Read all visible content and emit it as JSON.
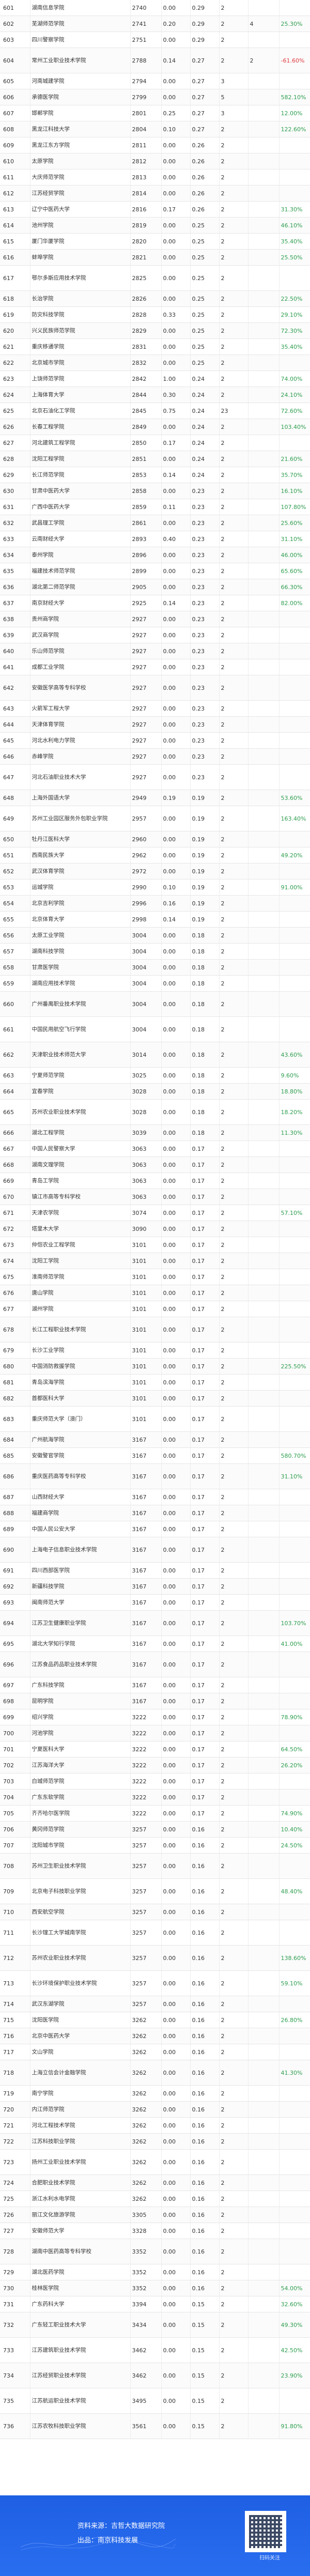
{
  "rows": [
    [
      "601",
      "湖南信息学院",
      "2740",
      "0.00",
      "0.29",
      "2",
      "",
      ""
    ],
    [
      "602",
      "芜湖师范学院",
      "2741",
      "0.20",
      "0.29",
      "2",
      "4",
      "25.30%"
    ],
    [
      "603",
      "四川警察学院",
      "2751",
      "0.00",
      "0.29",
      "2",
      "",
      ""
    ],
    [
      "604",
      "常州工业职业技术学院",
      "2788",
      "0.14",
      "0.27",
      "2",
      "2",
      "-61.60%"
    ],
    [
      "605",
      "河南城建学院",
      "2794",
      "0.00",
      "0.27",
      "3",
      "",
      ""
    ],
    [
      "606",
      "承德医学院",
      "2799",
      "0.00",
      "0.27",
      "5",
      "",
      "582.10%"
    ],
    [
      "607",
      "邯郸学院",
      "2801",
      "0.25",
      "0.27",
      "3",
      "",
      "12.00%"
    ],
    [
      "608",
      "黑龙江科技大学",
      "2804",
      "0.10",
      "0.27",
      "2",
      "",
      "122.60%"
    ],
    [
      "609",
      "黑龙江东方学院",
      "2811",
      "0.00",
      "0.26",
      "2",
      "",
      ""
    ],
    [
      "610",
      "太原学院",
      "2812",
      "0.00",
      "0.26",
      "2",
      "",
      ""
    ],
    [
      "611",
      "大庆师范学院",
      "2813",
      "0.00",
      "0.26",
      "2",
      "",
      ""
    ],
    [
      "612",
      "江苏经贸学院",
      "2814",
      "0.00",
      "0.26",
      "2",
      "",
      ""
    ],
    [
      "613",
      "辽宁中医药大学",
      "2816",
      "0.17",
      "0.26",
      "2",
      "",
      "31.30%"
    ],
    [
      "614",
      "池州学院",
      "2819",
      "0.00",
      "0.25",
      "2",
      "",
      "46.10%"
    ],
    [
      "615",
      "厦门华厦学院",
      "2820",
      "0.00",
      "0.25",
      "2",
      "",
      "35.40%"
    ],
    [
      "616",
      "蚌埠学院",
      "2821",
      "0.00",
      "0.25",
      "2",
      "",
      "25.50%"
    ],
    [
      "617",
      "鄂尔多斯应用技术学院",
      "2825",
      "0.00",
      "0.25",
      "2",
      "",
      ""
    ],
    [
      "618",
      "长治学院",
      "2826",
      "0.00",
      "0.25",
      "2",
      "",
      "22.50%"
    ],
    [
      "619",
      "防灾科技学院",
      "2828",
      "0.33",
      "0.25",
      "2",
      "",
      "29.10%"
    ],
    [
      "620",
      "兴义民族师范学院",
      "2829",
      "0.00",
      "0.25",
      "2",
      "",
      "72.30%"
    ],
    [
      "621",
      "重庆移通学院",
      "2831",
      "0.00",
      "0.25",
      "2",
      "",
      "35.40%"
    ],
    [
      "622",
      "北京城市学院",
      "2832",
      "0.00",
      "0.25",
      "2",
      "",
      ""
    ],
    [
      "623",
      "上饶师范学院",
      "2842",
      "1.00",
      "0.24",
      "2",
      "",
      "74.00%"
    ],
    [
      "624",
      "上海体育大学",
      "2844",
      "0.30",
      "0.24",
      "2",
      "",
      "24.10%"
    ],
    [
      "625",
      "北京石油化工学院",
      "2845",
      "0.75",
      "0.24",
      "23",
      "",
      "72.60%"
    ],
    [
      "626",
      "长春工程学院",
      "2849",
      "0.00",
      "0.24",
      "2",
      "",
      "103.40%"
    ],
    [
      "627",
      "河北建筑工程学院",
      "2850",
      "0.17",
      "0.24",
      "2",
      "",
      ""
    ],
    [
      "628",
      "沈阳工程学院",
      "2851",
      "0.00",
      "0.24",
      "2",
      "",
      "21.60%"
    ],
    [
      "629",
      "长江师范学院",
      "2853",
      "0.14",
      "0.24",
      "2",
      "",
      "35.70%"
    ],
    [
      "630",
      "甘肃中医药大学",
      "2858",
      "0.00",
      "0.23",
      "2",
      "",
      "16.10%"
    ],
    [
      "631",
      "广西中医药大学",
      "2859",
      "0.11",
      "0.23",
      "2",
      "",
      "107.80%"
    ],
    [
      "632",
      "武昌理工学院",
      "2861",
      "0.00",
      "0.23",
      "2",
      "",
      "25.60%"
    ],
    [
      "633",
      "云南财经大学",
      "2893",
      "0.40",
      "0.23",
      "2",
      "",
      "31.10%"
    ],
    [
      "634",
      "泰州学院",
      "2896",
      "0.00",
      "0.23",
      "2",
      "",
      "46.00%"
    ],
    [
      "635",
      "福建技术师范学院",
      "2899",
      "0.00",
      "0.23",
      "2",
      "",
      "65.60%"
    ],
    [
      "636",
      "湖北第二师范学院",
      "2905",
      "0.00",
      "0.23",
      "2",
      "",
      "66.30%"
    ],
    [
      "637",
      "南京财经大学",
      "2925",
      "0.14",
      "0.23",
      "2",
      "",
      "82.00%"
    ],
    [
      "638",
      "贵州商学院",
      "2927",
      "0.00",
      "0.23",
      "2",
      "",
      ""
    ],
    [
      "639",
      "武汉商学院",
      "2927",
      "0.00",
      "0.23",
      "2",
      "",
      ""
    ],
    [
      "640",
      "乐山师范学院",
      "2927",
      "0.00",
      "0.23",
      "2",
      "",
      ""
    ],
    [
      "641",
      "成都工业学院",
      "2927",
      "0.00",
      "0.23",
      "2",
      "",
      ""
    ],
    [
      "642",
      "安徽医学高等专科学校",
      "2927",
      "0.00",
      "0.23",
      "2",
      "",
      ""
    ],
    [
      "643",
      "火箭军工程大学",
      "2927",
      "0.00",
      "0.23",
      "2",
      "",
      ""
    ],
    [
      "644",
      "天津体育学院",
      "2927",
      "0.00",
      "0.23",
      "2",
      "",
      ""
    ],
    [
      "645",
      "河北水利电力学院",
      "2927",
      "0.00",
      "0.23",
      "2",
      "",
      ""
    ],
    [
      "646",
      "赤峰学院",
      "2927",
      "0.00",
      "0.23",
      "2",
      "",
      ""
    ],
    [
      "647",
      "河北石油职业技术大学",
      "2927",
      "0.00",
      "0.23",
      "2",
      "",
      ""
    ],
    [
      "648",
      "上海外国语大学",
      "2949",
      "0.19",
      "0.19",
      "2",
      "",
      "53.60%"
    ],
    [
      "649",
      "苏州工业园区服务外包职业学院",
      "2957",
      "0.00",
      "0.19",
      "2",
      "",
      "163.40%"
    ],
    [
      "650",
      "牡丹江医科大学",
      "2960",
      "0.00",
      "0.19",
      "2",
      "",
      ""
    ],
    [
      "651",
      "西南民族大学",
      "2962",
      "0.00",
      "0.19",
      "2",
      "",
      "49.20%"
    ],
    [
      "652",
      "武汉体育学院",
      "2972",
      "0.00",
      "0.19",
      "2",
      "",
      ""
    ],
    [
      "653",
      "运城学院",
      "2990",
      "0.10",
      "0.19",
      "2",
      "",
      "91.00%"
    ],
    [
      "654",
      "北京吉利学院",
      "2996",
      "0.16",
      "0.19",
      "2",
      "",
      ""
    ],
    [
      "655",
      "北京体育大学",
      "2998",
      "0.14",
      "0.19",
      "2",
      "",
      ""
    ],
    [
      "656",
      "太原工业学院",
      "3004",
      "0.00",
      "0.18",
      "2",
      "",
      ""
    ],
    [
      "657",
      "湖南科技学院",
      "3004",
      "0.00",
      "0.18",
      "2",
      "",
      ""
    ],
    [
      "658",
      "甘肃医学院",
      "3004",
      "0.00",
      "0.18",
      "2",
      "",
      ""
    ],
    [
      "659",
      "湖南应用技术学院",
      "3004",
      "0.00",
      "0.18",
      "2",
      "",
      ""
    ],
    [
      "660",
      "广州番禺职业技术学院",
      "3004",
      "0.00",
      "0.18",
      "2",
      "",
      ""
    ],
    [
      "661",
      "中国民用航空飞行学院",
      "3004",
      "0.00",
      "0.18",
      "2",
      "",
      ""
    ],
    [
      "662",
      "天津职业技术师范大学",
      "3014",
      "0.00",
      "0.18",
      "2",
      "",
      "43.60%"
    ],
    [
      "663",
      "宁夏师范学院",
      "3025",
      "0.00",
      "0.18",
      "2",
      "",
      "9.60%"
    ],
    [
      "664",
      "宜春学院",
      "3028",
      "0.00",
      "0.18",
      "2",
      "",
      "18.80%"
    ],
    [
      "665",
      "苏州农业职业技术学院",
      "3028",
      "0.00",
      "0.18",
      "2",
      "",
      "18.20%"
    ],
    [
      "666",
      "湖北工程学院",
      "3039",
      "0.00",
      "0.18",
      "2",
      "",
      "11.30%"
    ],
    [
      "667",
      "中国人民警察大学",
      "3063",
      "0.00",
      "0.17",
      "2",
      "",
      ""
    ],
    [
      "668",
      "湖南文理学院",
      "3063",
      "0.00",
      "0.17",
      "2",
      "",
      ""
    ],
    [
      "669",
      "青岛工学院",
      "3063",
      "0.00",
      "0.17",
      "2",
      "",
      ""
    ],
    [
      "670",
      "镇江市高等专科学校",
      "3063",
      "0.00",
      "0.17",
      "2",
      "",
      ""
    ],
    [
      "671",
      "天津农学院",
      "3074",
      "0.00",
      "0.17",
      "2",
      "",
      "57.10%"
    ],
    [
      "672",
      "塔里木大学",
      "3090",
      "0.00",
      "0.17",
      "2",
      "",
      ""
    ],
    [
      "673",
      "仲恺农业工程学院",
      "3101",
      "0.00",
      "0.17",
      "2",
      "",
      ""
    ],
    [
      "674",
      "沈阳工学院",
      "3101",
      "0.00",
      "0.17",
      "2",
      "",
      ""
    ],
    [
      "675",
      "淮南师范学院",
      "3101",
      "0.00",
      "0.17",
      "2",
      "",
      ""
    ],
    [
      "676",
      "唐山学院",
      "3101",
      "0.00",
      "0.17",
      "2",
      "",
      ""
    ],
    [
      "677",
      "湖州学院",
      "3101",
      "0.00",
      "0.17",
      "2",
      "",
      ""
    ],
    [
      "678",
      "长江工程职业技术学院",
      "3101",
      "0.00",
      "0.17",
      "2",
      "",
      ""
    ],
    [
      "679",
      "长沙工业学院",
      "3101",
      "0.00",
      "0.17",
      "2",
      "",
      ""
    ],
    [
      "680",
      "中国消防救援学院",
      "3101",
      "0.00",
      "0.17",
      "2",
      "",
      "225.50%"
    ],
    [
      "681",
      "青岛滨海学院",
      "3101",
      "0.00",
      "0.17",
      "2",
      "",
      ""
    ],
    [
      "682",
      "首都医科大学",
      "3101",
      "0.00",
      "0.17",
      "2",
      "",
      ""
    ],
    [
      "683",
      "重庆师范大学（澳门）",
      "3101",
      "0.00",
      "0.17",
      "2",
      "",
      ""
    ],
    [
      "684",
      "广州航海学院",
      "3167",
      "0.00",
      "0.17",
      "2",
      "",
      ""
    ],
    [
      "685",
      "安徽警官学院",
      "3167",
      "0.00",
      "0.17",
      "2",
      "",
      "580.70%"
    ],
    [
      "686",
      "重庆医药高等专科学校",
      "3167",
      "0.00",
      "0.17",
      "2",
      "",
      "31.10%"
    ],
    [
      "687",
      "山西财经大学",
      "3167",
      "0.00",
      "0.17",
      "2",
      "",
      ""
    ],
    [
      "688",
      "福建商学院",
      "3167",
      "0.00",
      "0.17",
      "2",
      "",
      ""
    ],
    [
      "689",
      "中国人民公安大学",
      "3167",
      "0.00",
      "0.17",
      "2",
      "",
      ""
    ],
    [
      "690",
      "上海电子信息职业技术学院",
      "3167",
      "0.00",
      "0.17",
      "2",
      "",
      ""
    ],
    [
      "691",
      "四川西部医学院",
      "3167",
      "0.00",
      "0.17",
      "2",
      "",
      ""
    ],
    [
      "692",
      "新疆科技学院",
      "3167",
      "0.00",
      "0.17",
      "2",
      "",
      ""
    ],
    [
      "693",
      "闽南师范大学",
      "3167",
      "0.00",
      "0.17",
      "2",
      "",
      ""
    ],
    [
      "694",
      "江苏卫生健康职业学院",
      "3167",
      "0.00",
      "0.17",
      "2",
      "",
      "103.70%"
    ],
    [
      "695",
      "湖北大学知行学院",
      "3167",
      "0.00",
      "0.17",
      "2",
      "",
      "41.00%"
    ],
    [
      "696",
      "江苏食品药品职业技术学院",
      "3167",
      "0.00",
      "0.17",
      "2",
      "",
      ""
    ],
    [
      "697",
      "广东科技学院",
      "3167",
      "0.00",
      "0.17",
      "2",
      "",
      ""
    ],
    [
      "698",
      "昆明学院",
      "3167",
      "0.00",
      "0.17",
      "2",
      "",
      ""
    ],
    [
      "699",
      "绍兴学院",
      "3222",
      "0.00",
      "0.17",
      "2",
      "",
      "78.90%"
    ],
    [
      "700",
      "河池学院",
      "3222",
      "0.00",
      "0.17",
      "2",
      "",
      ""
    ],
    [
      "701",
      "宁夏医科大学",
      "3222",
      "0.00",
      "0.17",
      "2",
      "",
      "64.50%"
    ],
    [
      "702",
      "江苏海洋大学",
      "3222",
      "0.00",
      "0.17",
      "2",
      "",
      "26.20%"
    ],
    [
      "703",
      "白城师范学院",
      "3222",
      "0.00",
      "0.17",
      "2",
      "",
      ""
    ],
    [
      "704",
      "广东东软学院",
      "3222",
      "0.00",
      "0.17",
      "2",
      "",
      ""
    ],
    [
      "705",
      "齐齐哈尔医学院",
      "3222",
      "0.00",
      "0.17",
      "2",
      "",
      "74.90%"
    ],
    [
      "706",
      "黄冈师范学院",
      "3257",
      "0.00",
      "0.16",
      "2",
      "",
      "10.40%"
    ],
    [
      "707",
      "沈阳城市学院",
      "3257",
      "0.00",
      "0.16",
      "2",
      "",
      "24.50%"
    ],
    [
      "708",
      "苏州卫生职业技术学院",
      "3257",
      "0.00",
      "0.16",
      "2",
      "",
      ""
    ],
    [
      "709",
      "北京电子科技职业学院",
      "3257",
      "0.00",
      "0.16",
      "2",
      "",
      "48.40%"
    ],
    [
      "710",
      "西安航空学院",
      "3257",
      "0.00",
      "0.16",
      "2",
      "",
      ""
    ],
    [
      "711",
      "长沙理工大学城南学院",
      "3257",
      "0.00",
      "0.16",
      "2",
      "",
      ""
    ],
    [
      "712",
      "苏州农业职业技术学院",
      "3257",
      "0.00",
      "0.16",
      "2",
      "",
      "138.60%"
    ],
    [
      "713",
      "长沙环境保护职业技术学院",
      "3257",
      "0.00",
      "0.16",
      "2",
      "",
      "59.10%"
    ],
    [
      "714",
      "武汉东湖学院",
      "3257",
      "0.00",
      "0.16",
      "2",
      "",
      ""
    ],
    [
      "715",
      "沈阳医学院",
      "3262",
      "0.00",
      "0.16",
      "2",
      "",
      "26.80%"
    ],
    [
      "716",
      "北京中医药大学",
      "3262",
      "0.00",
      "0.16",
      "2",
      "",
      ""
    ],
    [
      "717",
      "文山学院",
      "3262",
      "0.00",
      "0.16",
      "2",
      "",
      ""
    ],
    [
      "718",
      "上海立信会计金融学院",
      "3262",
      "0.00",
      "0.16",
      "2",
      "",
      "41.30%"
    ],
    [
      "719",
      "南宁学院",
      "3262",
      "0.00",
      "0.16",
      "2",
      "",
      ""
    ],
    [
      "720",
      "内江师范学院",
      "3262",
      "0.00",
      "0.16",
      "2",
      "",
      ""
    ],
    [
      "721",
      "河北工程技术学院",
      "3262",
      "0.00",
      "0.16",
      "2",
      "",
      ""
    ],
    [
      "722",
      "江苏科技职业学院",
      "3262",
      "0.00",
      "0.16",
      "2",
      "",
      ""
    ],
    [
      "723",
      "扬州工业职业技术学院",
      "3262",
      "0.00",
      "0.16",
      "2",
      "",
      ""
    ],
    [
      "724",
      "合肥职业技术学院",
      "3262",
      "0.00",
      "0.16",
      "2",
      "",
      ""
    ],
    [
      "725",
      "浙江水利水电学院",
      "3262",
      "0.00",
      "0.16",
      "2",
      "",
      ""
    ],
    [
      "726",
      "丽江文化旅游学院",
      "3305",
      "0.00",
      "0.16",
      "2",
      "",
      ""
    ],
    [
      "727",
      "安徽师范大学",
      "3328",
      "0.00",
      "0.16",
      "2",
      "",
      ""
    ],
    [
      "728",
      "湖南中医药高等专科学校",
      "3352",
      "0.00",
      "0.16",
      "2",
      "",
      ""
    ],
    [
      "729",
      "湖北医药学院",
      "3352",
      "0.00",
      "0.16",
      "2",
      "",
      ""
    ],
    [
      "730",
      "桂林医学院",
      "3352",
      "0.00",
      "0.16",
      "2",
      "",
      "54.00%"
    ],
    [
      "731",
      "广东药科大学",
      "3394",
      "0.00",
      "0.15",
      "2",
      "",
      "32.60%"
    ],
    [
      "732",
      "广东轻工职业技术大学",
      "3434",
      "0.00",
      "0.15",
      "2",
      "",
      "49.30%"
    ],
    [
      "733",
      "江苏建筑职业技术学院",
      "3462",
      "0.00",
      "0.15",
      "2",
      "",
      "42.50%"
    ],
    [
      "734",
      "江苏经贸职业技术学院",
      "3462",
      "0.00",
      "0.15",
      "2",
      "",
      "23.90%"
    ],
    [
      "735",
      "江苏航运职业技术学院",
      "3495",
      "0.00",
      "0.15",
      "2",
      "",
      ""
    ],
    [
      "736",
      "江苏农牧科技职业学院",
      "3561",
      "0.00",
      "0.15",
      "2",
      "",
      "91.80%"
    ]
  ],
  "footer": {
    "source_line": "资料来源：吉哲大数据研究院",
    "org_line": "出品：南京科技发展",
    "qr_caption": "扫码关注"
  },
  "colors": {
    "footer_blue": "#1e5fe3",
    "positive": "#2e9e4f",
    "negative": "#e0393e"
  }
}
